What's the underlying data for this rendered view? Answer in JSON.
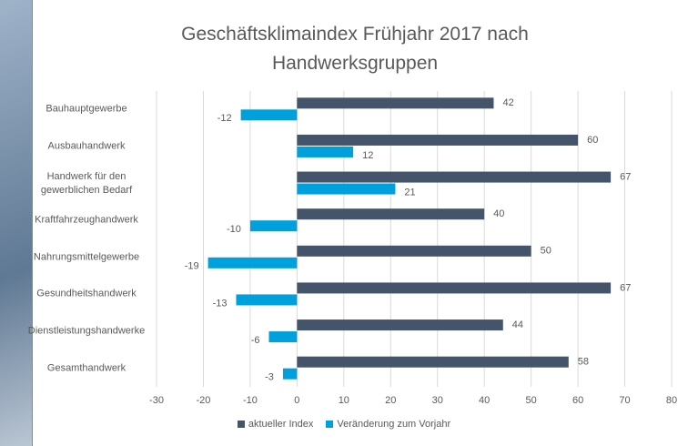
{
  "chart_data": {
    "type": "hbar",
    "title": "Geschäftsklimaindex Frühjahr 2017 nach Handwerksgruppen",
    "categories": [
      "Bauhauptgewerbe",
      "Ausbauhandwerk",
      "Handwerk für den\ngewerblichen Bedarf",
      "Kraftfahrzeughandwerk",
      "Nahrungsmittelgewerbe",
      "Gesundheitshandwerk",
      "Dienstleistungshandwerke",
      "Gesamthandwerk"
    ],
    "series": [
      {
        "name": "aktueller Index",
        "color": "#44546a",
        "values": [
          42,
          60,
          67,
          40,
          50,
          67,
          44,
          58
        ]
      },
      {
        "name": "Veränderung zum Vorjahr",
        "color": "#00a0dc",
        "values": [
          -12,
          12,
          21,
          -10,
          -19,
          -13,
          -6,
          -3
        ]
      }
    ],
    "xlim": [
      -30,
      80
    ],
    "xticks": [
      -30,
      -20,
      -10,
      0,
      10,
      20,
      30,
      40,
      50,
      60,
      70,
      80
    ],
    "grid": true,
    "legend": "bottom"
  }
}
